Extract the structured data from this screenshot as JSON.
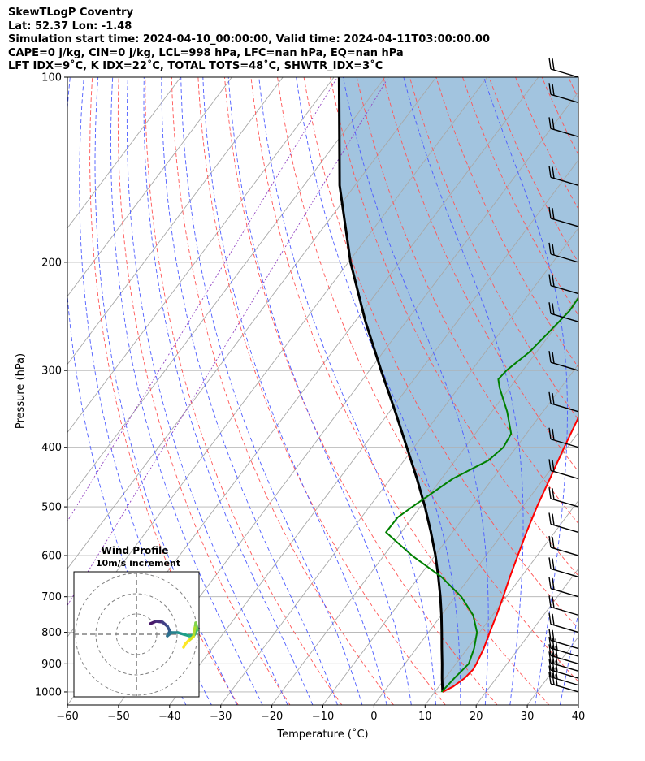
{
  "header": {
    "line1": "SkewTLogP Coventry",
    "line2": "Lat: 52.37   Lon: -1.48",
    "line3": "Simulation start time: 2024-04-10_00:00:00, Valid time: 2024-04-11T03:00:00.00",
    "line4": "CAPE=0 j/kg, CIN=0 j/kg, LCL=998 hPa, LFC=nan hPa, EQ=nan hPa",
    "line5": "LFT IDX=9˚C, K IDX=22˚C, TOTAL TOTS=48˚C, SHWTR_IDX=3˚C"
  },
  "chart_data": [
    {
      "type": "line",
      "subtype": "skew-t log-p",
      "xlabel": "Temperature (˚C)",
      "ylabel": "Pressure (hPa)",
      "xlim": [
        -60,
        40
      ],
      "ylim": [
        1050,
        100
      ],
      "y_scale": "log",
      "x_ticks": [
        -60,
        -50,
        -40,
        -30,
        -20,
        -10,
        0,
        10,
        20,
        30,
        40
      ],
      "x_tick_labels": [
        "−60",
        "−50",
        "−40",
        "−30",
        "−20",
        "−10",
        "0",
        "10",
        "20",
        "30",
        "40"
      ],
      "y_ticks": [
        1000,
        900,
        800,
        700,
        600,
        500,
        400,
        300,
        200,
        100
      ],
      "y_tick_labels": [
        "1000",
        "900",
        "800",
        "700",
        "600",
        "500",
        "400",
        "300",
        "200",
        "100"
      ],
      "grid": true,
      "series": [
        {
          "role": "temperature",
          "color": "#ff0000",
          "points": [
            [
              1000,
              11.5
            ],
            [
              980,
              12.8
            ],
            [
              950,
              13.8
            ],
            [
              920,
              14.2
            ],
            [
              900,
              14.0
            ],
            [
              850,
              13.2
            ],
            [
              800,
              12.0
            ],
            [
              750,
              10.8
            ],
            [
              700,
              9.4
            ],
            [
              650,
              7.8
            ],
            [
              600,
              6.2
            ],
            [
              550,
              4.5
            ],
            [
              500,
              2.8
            ],
            [
              450,
              1.2
            ],
            [
              400,
              -0.6
            ],
            [
              350,
              -2.5
            ],
            [
              320,
              -4.7
            ],
            [
              300,
              -6.4
            ],
            [
              280,
              -8.0
            ],
            [
              260,
              -9.5
            ],
            [
              240,
              -10.8
            ],
            [
              220,
              -11.5
            ],
            [
              205,
              -11.3
            ],
            [
              200,
              -11.0
            ],
            [
              190,
              -9.8
            ],
            [
              180,
              -7.5
            ],
            [
              170,
              -3.6
            ],
            [
              160,
              -1.5
            ],
            [
              150,
              0.6
            ],
            [
              130,
              4.6
            ],
            [
              120,
              7.2
            ],
            [
              110,
              9.7
            ],
            [
              100,
              12.0
            ]
          ]
        },
        {
          "role": "dewpoint",
          "color": "#008000",
          "points": [
            [
              1000,
              11.3
            ],
            [
              950,
              11.8
            ],
            [
              900,
              12.5
            ],
            [
              850,
              11.3
            ],
            [
              800,
              9.5
            ],
            [
              750,
              6.2
            ],
            [
              700,
              1.2
            ],
            [
              650,
              -5.6
            ],
            [
              600,
              -14.5
            ],
            [
              550,
              -23.0
            ],
            [
              520,
              -22.9
            ],
            [
              500,
              -21.6
            ],
            [
              450,
              -17.8
            ],
            [
              420,
              -13.5
            ],
            [
              400,
              -12.5
            ],
            [
              380,
              -13.0
            ],
            [
              350,
              -17.0
            ],
            [
              320,
              -22.0
            ],
            [
              310,
              -23.5
            ],
            [
              300,
              -23.2
            ],
            [
              280,
              -21.4
            ],
            [
              260,
              -20.5
            ],
            [
              240,
              -19.6
            ],
            [
              220,
              -19.9
            ],
            [
              200,
              -19.3
            ],
            [
              190,
              -19.6
            ],
            [
              180,
              -21.5
            ],
            [
              170,
              -24.4
            ],
            [
              160,
              -24.4
            ],
            [
              150,
              -22.6
            ],
            [
              130,
              -17.1
            ],
            [
              115,
              -11.5
            ],
            [
              100,
              -5.0
            ]
          ]
        },
        {
          "role": "parcel",
          "color": "#000000",
          "points": [
            [
              1000,
              11.5
            ],
            [
              950,
              9.4
            ],
            [
              900,
              7.3
            ],
            [
              850,
              5.0
            ],
            [
              800,
              2.6
            ],
            [
              750,
              0.0
            ],
            [
              700,
              -2.9
            ],
            [
              650,
              -6.2
            ],
            [
              600,
              -9.9
            ],
            [
              550,
              -14.2
            ],
            [
              500,
              -19.1
            ],
            [
              450,
              -24.8
            ],
            [
              400,
              -31.4
            ],
            [
              350,
              -38.9
            ],
            [
              300,
              -47.7
            ],
            [
              250,
              -57.9
            ],
            [
              200,
              -69.6
            ],
            [
              150,
              -83.0
            ],
            [
              100,
              -99.0
            ]
          ]
        }
      ],
      "shaded_region": "CAPE/CIN between parcel and temperature (light blue)",
      "wind_barbs": {
        "side": "right",
        "pressures": [
          1000,
          975,
          950,
          925,
          900,
          875,
          850,
          800,
          750,
          700,
          650,
          600,
          550,
          500,
          450,
          400,
          350,
          300,
          250,
          225,
          200,
          175,
          150,
          125,
          110,
          100
        ]
      },
      "inset": {
        "type": "hodograph",
        "title_line1": "Wind Profile",
        "title_line2": "10m/s increment",
        "rings": 3,
        "colormap": "viridis"
      }
    }
  ]
}
